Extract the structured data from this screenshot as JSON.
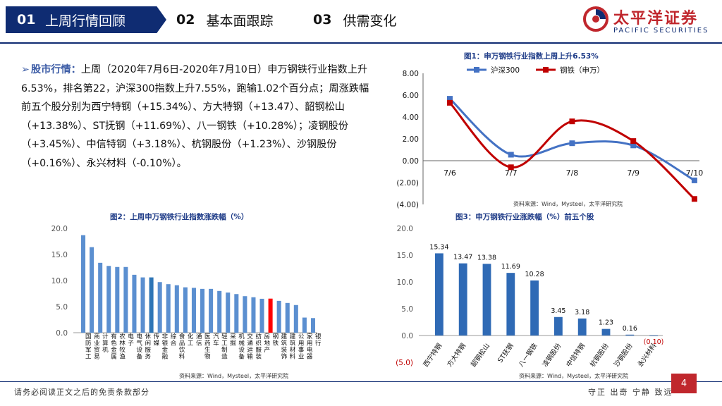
{
  "header": {
    "tabs": [
      {
        "num": "01",
        "label": "上周行情回顾"
      },
      {
        "num": "02",
        "label": "基本面跟踪"
      },
      {
        "num": "03",
        "label": "供需变化"
      }
    ],
    "logo_cn": "太平洋证券",
    "logo_en": "PACIFIC SECURITIES"
  },
  "paragraph": {
    "bullet": "➢",
    "keyword": "股市行情",
    "colon": "：",
    "text": "上周（2020年7月6日-2020年7月10日）申万钢铁行业指数上升6.53%，排名第22，沪深300指数上升7.55%，跑输1.02个百分点；周涨跌幅前五个股分别为西宁特钢（+15.34%）、方大特钢（+13.47）、韶钢松山（+13.38%）、ST抚钢（+11.69%）、八一钢铁（+10.28%）；凌钢股份（+3.45%）、中信特钢（+3.18%）、杭钢股份（+1.23%）、沙钢股份（+0.16%）、永兴材料（-0.10%）。"
  },
  "chart_data": [
    {
      "id": "fig1",
      "type": "line",
      "title": "图1：申万钢铁行业指数上周上升6.53%",
      "source": "资料来源：Wind，Mysteel，太平洋研究院",
      "categories": [
        "7/6",
        "7/7",
        "7/8",
        "7/9",
        "7/10"
      ],
      "series": [
        {
          "name": "沪深300",
          "values": [
            5.67,
            0.55,
            1.6,
            1.4,
            -1.8
          ],
          "color": "#4472c4",
          "marker": "square"
        },
        {
          "name": "钢铁（申万）",
          "values": [
            5.3,
            -0.6,
            3.6,
            1.8,
            -3.5
          ],
          "color": "#c00000",
          "marker": "square"
        }
      ],
      "y_ticks": [
        "8.00",
        "6.00",
        "4.00",
        "2.00",
        "0.00",
        "(2.00)",
        "(4.00)"
      ],
      "ylim": [
        -4,
        8
      ],
      "legend": "top"
    },
    {
      "id": "fig2",
      "type": "bar",
      "title": "图2：上周申万钢铁行业指数涨跌幅（%）",
      "source": "资料来源：Wind，Mysteel，太平洋研究院",
      "categories": [
        "国防军工",
        "商业贸易",
        "计算机",
        "有色金属",
        "农林牧渔",
        "电子",
        "电气设备",
        "休闲服务",
        "传媒",
        "非银金融",
        "综合",
        "食品饮料",
        "化工",
        "通信",
        "医药生物",
        "汽车",
        "轻工制造",
        "采掘",
        "机械设备",
        "交通运输",
        "纺织服装",
        "房地产",
        "钢铁",
        "建筑装饰",
        "建筑材料",
        "公用事业",
        "家用电器",
        "银行"
      ],
      "values": [
        18.7,
        16.4,
        13.4,
        12.8,
        12.6,
        12.6,
        11.1,
        10.6,
        10.6,
        9.7,
        9.3,
        9.1,
        8.7,
        8.6,
        8.4,
        8.4,
        8.0,
        7.7,
        7.4,
        7.0,
        6.8,
        6.5,
        6.53,
        6.1,
        5.7,
        5.3,
        2.9,
        2.8
      ],
      "highlight": {
        "传媒": "#2e75b6",
        "钢铁": "#ff0000"
      },
      "bar_color": "#5b8fd0",
      "y_ticks": [
        "20.0",
        "15.0",
        "10.0",
        "5.0",
        "0.0"
      ],
      "ylim": [
        0,
        20
      ]
    },
    {
      "id": "fig3",
      "type": "bar",
      "title": "图3：申万钢铁行业涨跌幅（%）前五个股",
      "source": "资料来源：Wind，Mysteel，太平洋研究院",
      "categories": [
        "西宁特钢",
        "方大特钢",
        "韶钢松山",
        "ST抚钢",
        "八一钢铁",
        "凌钢股份",
        "中信特钢",
        "杭钢股份",
        "沙钢股份",
        "永兴材料"
      ],
      "values": [
        15.34,
        13.47,
        13.38,
        11.69,
        10.28,
        3.45,
        3.18,
        1.23,
        0.16,
        -0.1
      ],
      "labels": [
        "15.34",
        "13.47",
        "13.38",
        "11.69",
        "10.28",
        "3.45",
        "3.18",
        "1.23",
        "0.16",
        "(0.10)"
      ],
      "bar_color": "#2f6ab5",
      "y_ticks": [
        "20.0",
        "15.0",
        "10.0",
        "5.0",
        "0.0",
        "(5.0)"
      ],
      "ylim": [
        -5,
        20
      ]
    }
  ],
  "footer": {
    "disclaimer": "请务必阅读正文之后的免责条款部分",
    "motto": "守正 出奇 宁静 致远",
    "page": "4"
  }
}
